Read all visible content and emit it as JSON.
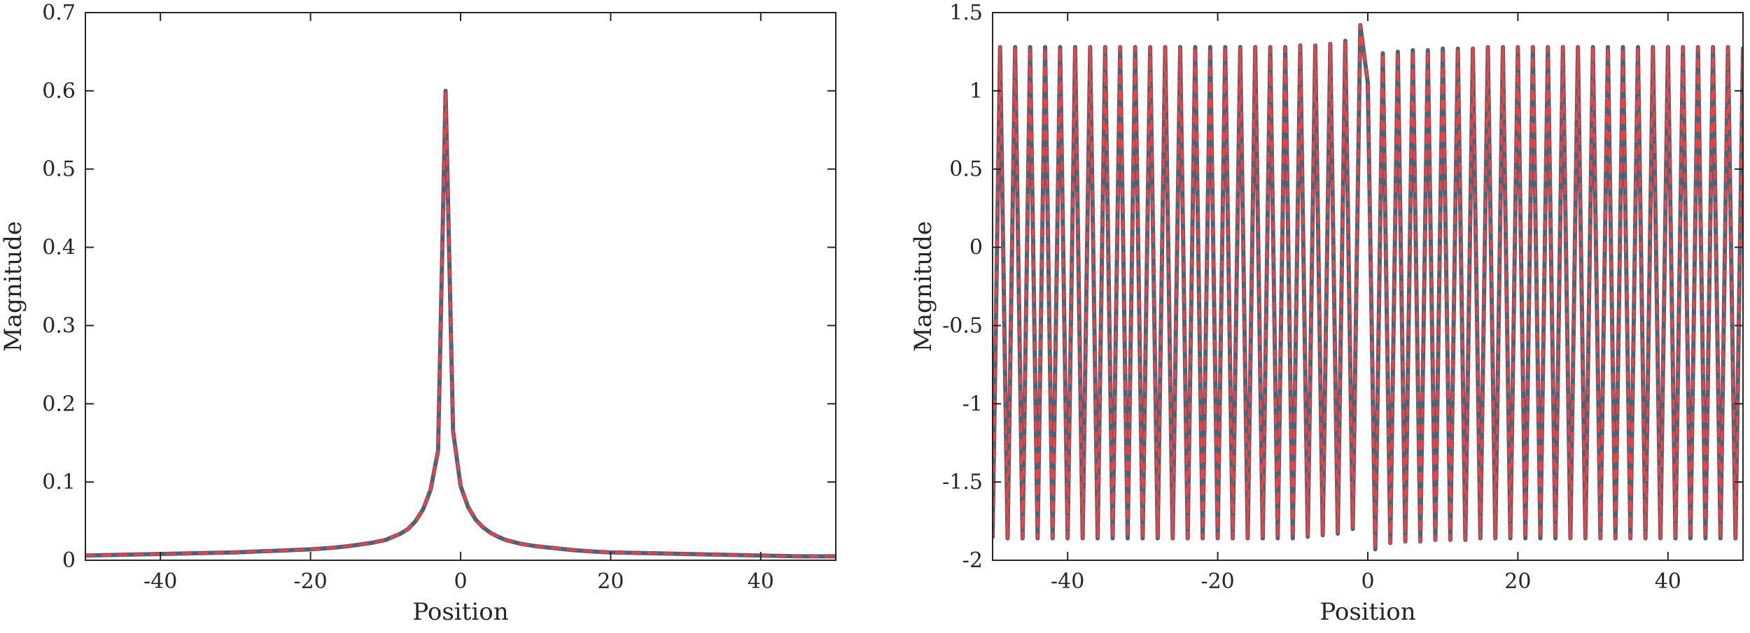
{
  "colors": {
    "series_solid": "#4a6478",
    "series_dashed": "#ff3b3b",
    "axis": "#262626",
    "background": "#ffffff"
  },
  "chart_data": [
    {
      "type": "line",
      "title": "",
      "xlabel": "Position",
      "ylabel": "Magnitude",
      "xlim": [
        -50,
        50
      ],
      "ylim": [
        0,
        0.7
      ],
      "xticks": [
        -40,
        -20,
        0,
        20,
        40
      ],
      "xtick_labels": [
        "-40",
        "-20",
        "0",
        "20",
        "40"
      ],
      "yticks": [
        0,
        0.1,
        0.2,
        0.3,
        0.4,
        0.5,
        0.6,
        0.7
      ],
      "ytick_labels": [
        "0",
        "0.1",
        "0.2",
        "0.3",
        "0.4",
        "0.5",
        "0.6",
        "0.7"
      ],
      "grid": false,
      "legend": "none",
      "series": [
        {
          "style": "solid",
          "color": "#4a6478",
          "x": [
            -50,
            -45,
            -40,
            -35,
            -30,
            -25,
            -20,
            -17,
            -15,
            -12,
            -10,
            -8,
            -7,
            -6,
            -5,
            -4,
            -3,
            -2,
            -1,
            0,
            1,
            2,
            3,
            4,
            5,
            6,
            8,
            10,
            12,
            15,
            18,
            20,
            25,
            30,
            35,
            40,
            45,
            50
          ],
          "y": [
            0.006,
            0.007,
            0.008,
            0.009,
            0.01,
            0.012,
            0.014,
            0.016,
            0.018,
            0.022,
            0.026,
            0.034,
            0.04,
            0.05,
            0.065,
            0.09,
            0.14,
            0.6,
            0.165,
            0.095,
            0.068,
            0.052,
            0.042,
            0.035,
            0.03,
            0.026,
            0.021,
            0.018,
            0.016,
            0.013,
            0.011,
            0.01,
            0.009,
            0.008,
            0.007,
            0.006,
            0.005,
            0.005
          ]
        },
        {
          "style": "dashed",
          "color": "#ff3b3b",
          "x": [
            -50,
            -45,
            -40,
            -35,
            -30,
            -25,
            -20,
            -17,
            -15,
            -12,
            -10,
            -8,
            -7,
            -6,
            -5,
            -4,
            -3,
            -2,
            -1,
            0,
            1,
            2,
            3,
            4,
            5,
            6,
            8,
            10,
            12,
            15,
            18,
            20,
            25,
            30,
            35,
            40,
            45,
            50
          ],
          "y": [
            0.006,
            0.007,
            0.008,
            0.009,
            0.01,
            0.012,
            0.014,
            0.016,
            0.018,
            0.022,
            0.026,
            0.034,
            0.04,
            0.05,
            0.065,
            0.09,
            0.14,
            0.6,
            0.165,
            0.095,
            0.068,
            0.052,
            0.042,
            0.035,
            0.03,
            0.026,
            0.021,
            0.018,
            0.016,
            0.013,
            0.011,
            0.01,
            0.009,
            0.008,
            0.007,
            0.006,
            0.005,
            0.005
          ]
        }
      ]
    },
    {
      "type": "line",
      "title": "",
      "xlabel": "Position",
      "ylabel": "Magnitude",
      "xlim": [
        -50,
        50
      ],
      "ylim": [
        -2,
        1.5
      ],
      "xticks": [
        -40,
        -20,
        0,
        20,
        40
      ],
      "xtick_labels": [
        "-40",
        "-20",
        "0",
        "20",
        "40"
      ],
      "yticks": [
        -2,
        -1.5,
        -1,
        -0.5,
        0,
        0.5,
        1,
        1.5
      ],
      "ytick_labels": [
        "-2",
        "-1.5",
        "-1",
        "-0.5",
        "0",
        "0.5",
        "1",
        "1.5"
      ],
      "grid": false,
      "legend": "none",
      "series": [
        {
          "style": "solid",
          "color": "#4a6478",
          "x": [
            -50,
            -49,
            -48,
            -47,
            -46,
            -45,
            -44,
            -43,
            -42,
            -41,
            -40,
            -39,
            -38,
            -37,
            -36,
            -35,
            -34,
            -33,
            -32,
            -31,
            -30,
            -29,
            -28,
            -27,
            -26,
            -25,
            -24,
            -23,
            -22,
            -21,
            -20,
            -19,
            -18,
            -17,
            -16,
            -15,
            -14,
            -13,
            -12,
            -11,
            -10,
            -9,
            -8,
            -7,
            -6,
            -5,
            -4,
            -3,
            -2,
            -1,
            0,
            1,
            2,
            3,
            4,
            5,
            6,
            7,
            8,
            9,
            10,
            11,
            12,
            13,
            14,
            15,
            16,
            17,
            18,
            19,
            20,
            21,
            22,
            23,
            24,
            25,
            26,
            27,
            28,
            29,
            30,
            31,
            32,
            33,
            34,
            35,
            36,
            37,
            38,
            39,
            40,
            41,
            42,
            43,
            44,
            45,
            46,
            47,
            48,
            49,
            50
          ],
          "y": [
            -1.86,
            1.28,
            -1.86,
            1.28,
            -1.86,
            1.28,
            -1.86,
            1.28,
            -1.86,
            1.28,
            -1.86,
            1.28,
            -1.86,
            1.28,
            -1.86,
            1.28,
            -1.86,
            1.28,
            -1.86,
            1.28,
            -1.86,
            1.28,
            -1.86,
            1.28,
            -1.86,
            1.28,
            -1.86,
            1.28,
            -1.86,
            1.28,
            -1.86,
            1.28,
            -1.86,
            1.28,
            -1.86,
            1.28,
            -1.86,
            1.28,
            -1.86,
            1.28,
            -1.86,
            1.29,
            -1.85,
            1.29,
            -1.84,
            1.3,
            -1.83,
            1.32,
            -1.8,
            1.42,
            1.05,
            -1.93,
            1.24,
            -1.89,
            1.25,
            -1.88,
            1.26,
            -1.88,
            1.26,
            -1.87,
            1.27,
            -1.87,
            1.27,
            -1.87,
            1.27,
            -1.86,
            1.28,
            -1.86,
            1.28,
            -1.86,
            1.28,
            -1.86,
            1.28,
            -1.86,
            1.28,
            -1.86,
            1.28,
            -1.86,
            1.28,
            -1.86,
            1.28,
            -1.86,
            1.28,
            -1.86,
            1.28,
            -1.86,
            1.28,
            -1.86,
            1.28,
            -1.86,
            1.28,
            -1.86,
            1.28,
            -1.86,
            1.28,
            -1.86,
            1.28,
            -1.86,
            1.28,
            -1.86,
            1.28
          ]
        },
        {
          "style": "dashed",
          "color": "#ff3b3b",
          "x": [
            -50,
            -49,
            -48,
            -47,
            -46,
            -45,
            -44,
            -43,
            -42,
            -41,
            -40,
            -39,
            -38,
            -37,
            -36,
            -35,
            -34,
            -33,
            -32,
            -31,
            -30,
            -29,
            -28,
            -27,
            -26,
            -25,
            -24,
            -23,
            -22,
            -21,
            -20,
            -19,
            -18,
            -17,
            -16,
            -15,
            -14,
            -13,
            -12,
            -11,
            -10,
            -9,
            -8,
            -7,
            -6,
            -5,
            -4,
            -3,
            -2,
            -1,
            0,
            1,
            2,
            3,
            4,
            5,
            6,
            7,
            8,
            9,
            10,
            11,
            12,
            13,
            14,
            15,
            16,
            17,
            18,
            19,
            20,
            21,
            22,
            23,
            24,
            25,
            26,
            27,
            28,
            29,
            30,
            31,
            32,
            33,
            34,
            35,
            36,
            37,
            38,
            39,
            40,
            41,
            42,
            43,
            44,
            45,
            46,
            47,
            48,
            49,
            50
          ],
          "y": [
            -1.86,
            1.28,
            -1.86,
            1.28,
            -1.86,
            1.28,
            -1.86,
            1.28,
            -1.86,
            1.28,
            -1.86,
            1.28,
            -1.86,
            1.28,
            -1.86,
            1.28,
            -1.86,
            1.28,
            -1.86,
            1.28,
            -1.86,
            1.28,
            -1.86,
            1.28,
            -1.86,
            1.28,
            -1.86,
            1.28,
            -1.86,
            1.28,
            -1.86,
            1.28,
            -1.86,
            1.28,
            -1.86,
            1.28,
            -1.86,
            1.28,
            -1.86,
            1.28,
            -1.86,
            1.29,
            -1.85,
            1.29,
            -1.84,
            1.3,
            -1.83,
            1.32,
            -1.8,
            1.42,
            1.05,
            -1.93,
            1.24,
            -1.89,
            1.25,
            -1.88,
            1.26,
            -1.88,
            1.26,
            -1.87,
            1.27,
            -1.87,
            1.27,
            -1.87,
            1.27,
            -1.86,
            1.28,
            -1.86,
            1.28,
            -1.86,
            1.28,
            -1.86,
            1.28,
            -1.86,
            1.28,
            -1.86,
            1.28,
            -1.86,
            1.28,
            -1.86,
            1.28,
            -1.86,
            1.28,
            -1.86,
            1.28,
            -1.86,
            1.28,
            -1.86,
            1.28,
            -1.86,
            1.28,
            -1.86,
            1.28,
            -1.86,
            1.28,
            -1.86,
            1.28,
            -1.86,
            1.28,
            -1.86,
            1.28
          ]
        }
      ]
    }
  ]
}
